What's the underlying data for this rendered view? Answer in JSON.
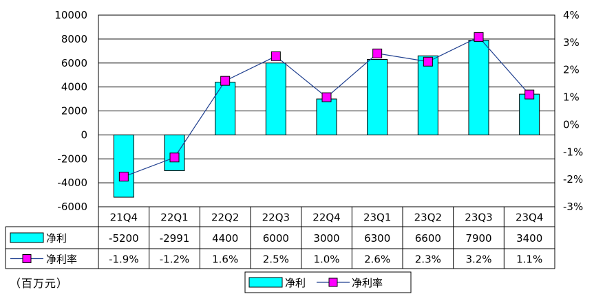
{
  "chart_data": {
    "type": "bar",
    "categories": [
      "21Q4",
      "22Q1",
      "22Q2",
      "22Q3",
      "22Q4",
      "23Q1",
      "23Q2",
      "23Q3",
      "23Q4"
    ],
    "series": [
      {
        "name": "净利",
        "type": "bar",
        "axis": "left",
        "color": "#00ffff",
        "values": [
          -5200,
          -2991,
          4400,
          6000,
          3000,
          6300,
          6600,
          7900,
          3400
        ],
        "value_labels": [
          "-5200",
          "-2991",
          "4400",
          "6000",
          "3000",
          "6300",
          "6600",
          "7900",
          "3400"
        ]
      },
      {
        "name": "净利率",
        "type": "line",
        "axis": "right",
        "color": "#ff00ff",
        "line_color": "#1f3f8f",
        "values": [
          -1.9,
          -1.2,
          1.6,
          2.5,
          1.0,
          2.6,
          2.3,
          3.2,
          1.1
        ],
        "value_labels": [
          "-1.9%",
          "-1.2%",
          "1.6%",
          "2.5%",
          "1.0%",
          "2.6%",
          "2.3%",
          "3.2%",
          "1.1%"
        ]
      }
    ],
    "y_left": {
      "ylim": [
        -6000,
        10000
      ],
      "ticks": [
        10000,
        8000,
        6000,
        4000,
        2000,
        0,
        -2000,
        -4000,
        -6000
      ],
      "tick_labels": [
        "10000",
        "8000",
        "6000",
        "4000",
        "2000",
        "0",
        "-2000",
        "-4000",
        "-6000"
      ]
    },
    "y_right": {
      "ylim": [
        -3,
        4
      ],
      "ticks": [
        4,
        3,
        2,
        1,
        0,
        -1,
        -2,
        -3
      ],
      "tick_labels": [
        "4%",
        "3%",
        "2%",
        "1%",
        "0%",
        "-1%",
        "-2%",
        "-3%"
      ]
    },
    "grid": true,
    "legend": {
      "placement": "bottom-center",
      "items": [
        "净利",
        "净利率"
      ]
    },
    "data_table": true,
    "unit_note": "（百万元）"
  }
}
